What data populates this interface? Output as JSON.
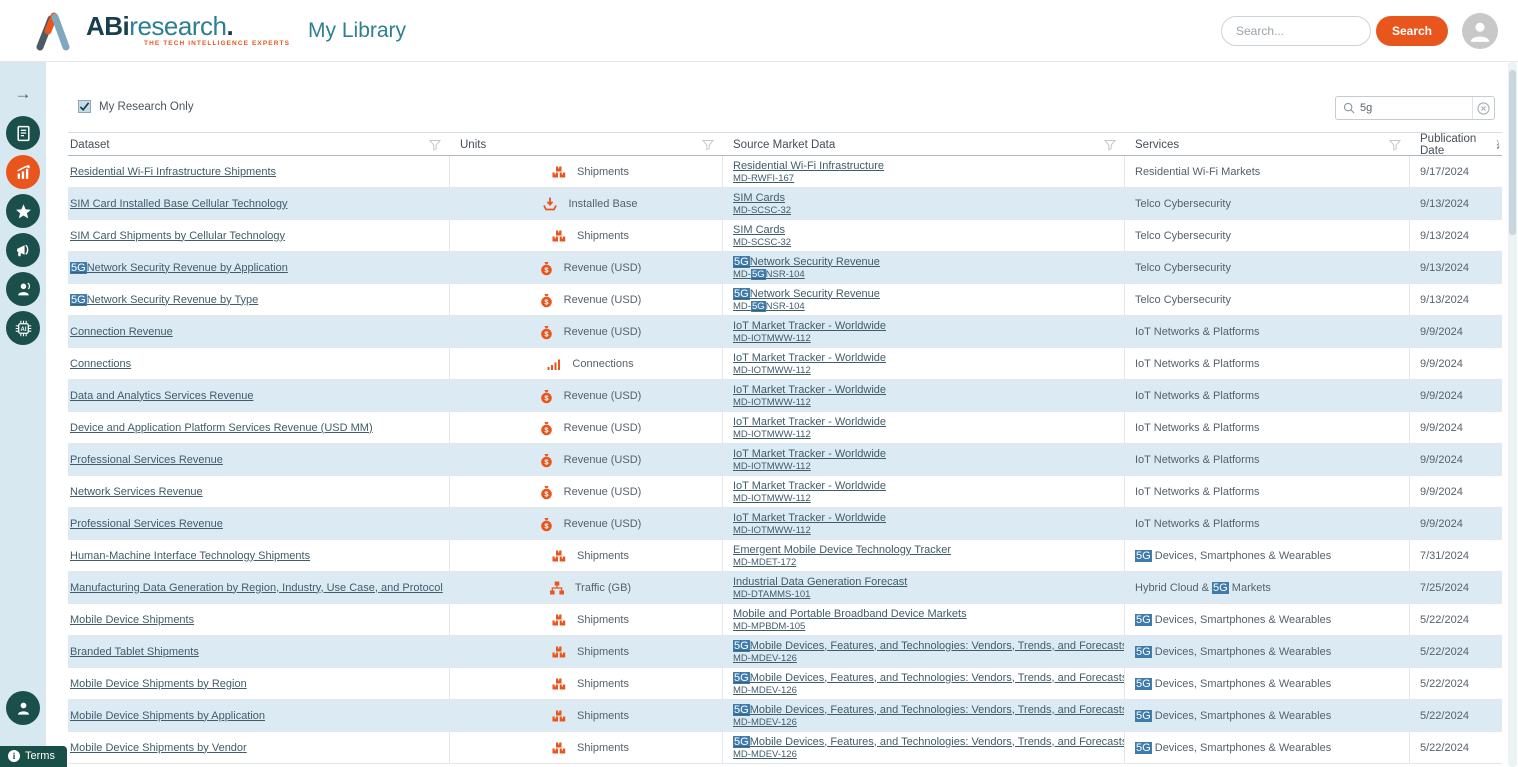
{
  "colors": {
    "accent_orange": "#E8561E",
    "sidebar_circle_teal": "#1A4F4B",
    "teal_text": "#2E7F92",
    "logo_dark": "#173F4E",
    "highlight_blue": "#3F7CAC",
    "row_alt_blue": "#DCEBF3",
    "link_color": "#3F5D6B"
  },
  "header": {
    "logo_abi": "ABi",
    "logo_research": "research",
    "logo_dot": ".",
    "logo_tagline": "THE TECH INTELLIGENCE EXPERTS",
    "page_title": "My Library",
    "search_placeholder": "Search...",
    "search_button_label": "Search",
    "avatar_icon": "user-avatar-icon"
  },
  "sidebar": {
    "collapse_arrow": "→",
    "items": [
      {
        "id": "reports",
        "icon": "report-icon",
        "active": false
      },
      {
        "id": "market-data",
        "icon": "chart-icon",
        "active": true
      },
      {
        "id": "favorites",
        "icon": "star-icon",
        "active": false
      },
      {
        "id": "announcements",
        "icon": "megaphone-icon",
        "active": false
      },
      {
        "id": "analyst-inquiry",
        "icon": "analyst-icon",
        "active": false
      },
      {
        "id": "ai-assistant",
        "icon": "ai-chip-icon",
        "active": false
      }
    ],
    "bottom_item": {
      "id": "account",
      "icon": "account-icon"
    }
  },
  "controls": {
    "my_research_label": "My Research Only",
    "my_research_checked": true,
    "table_search_value": "5g",
    "table_search_icons": [
      "search-icon",
      "clear-icon"
    ]
  },
  "table": {
    "columns": [
      {
        "label": "Dataset",
        "icon": "filter-funnel-icon"
      },
      {
        "label": "Units",
        "icon": "filter-funnel-icon"
      },
      {
        "label": "Source Market Data",
        "icon": "filter-funnel-icon"
      },
      {
        "label": "Services",
        "icon": "filter-funnel-icon"
      },
      {
        "label": "Publication Date",
        "icon": "sort-descending-icon"
      }
    ],
    "rows": [
      {
        "name": "Residential Wi-Fi Infrastructure Shipments",
        "unit_icon": "shipments",
        "unit": "Shipments",
        "source": "Residential Wi-Fi Infrastructure",
        "code": "MD-RWFI-167",
        "services": "Residential Wi-Fi Markets",
        "date": "9/17/2024"
      },
      {
        "name": "SIM Card Installed Base Cellular Technology",
        "unit_icon": "installed-base",
        "unit": "Installed Base",
        "source": "SIM Cards",
        "code": "MD-SCSC-32",
        "services": "Telco Cybersecurity",
        "date": "9/13/2024"
      },
      {
        "name": "SIM Card Shipments by Cellular Technology",
        "unit_icon": "shipments",
        "unit": "Shipments",
        "source": "SIM Cards",
        "code": "MD-SCSC-32",
        "services": "Telco Cybersecurity",
        "date": "9/13/2024"
      },
      {
        "name": "«5G»Network Security Revenue by Application",
        "unit_icon": "revenue",
        "unit": "Revenue (USD)",
        "source": "«5G»Network Security Revenue",
        "code": "MD-«5G»NSR-104",
        "services": "Telco Cybersecurity",
        "date": "9/13/2024"
      },
      {
        "name": "«5G»Network Security Revenue by Type",
        "unit_icon": "revenue",
        "unit": "Revenue (USD)",
        "source": "«5G»Network Security Revenue",
        "code": "MD-«5G»NSR-104",
        "services": "Telco Cybersecurity",
        "date": "9/13/2024"
      },
      {
        "name": "Connection Revenue",
        "unit_icon": "revenue",
        "unit": "Revenue (USD)",
        "source": "IoT Market Tracker - Worldwide",
        "code": "MD-IOTMWW-112",
        "services": "IoT Networks & Platforms",
        "date": "9/9/2024"
      },
      {
        "name": "Connections",
        "unit_icon": "connections",
        "unit": "Connections",
        "source": "IoT Market Tracker - Worldwide",
        "code": "MD-IOTMWW-112",
        "services": "IoT Networks & Platforms",
        "date": "9/9/2024"
      },
      {
        "name": "Data and Analytics Services Revenue",
        "unit_icon": "revenue",
        "unit": "Revenue (USD)",
        "source": "IoT Market Tracker - Worldwide",
        "code": "MD-IOTMWW-112",
        "services": "IoT Networks & Platforms",
        "date": "9/9/2024"
      },
      {
        "name": "Device and Application Platform Services Revenue (USD MM)",
        "unit_icon": "revenue",
        "unit": "Revenue (USD)",
        "source": "IoT Market Tracker - Worldwide",
        "code": "MD-IOTMWW-112",
        "services": "IoT Networks & Platforms",
        "date": "9/9/2024"
      },
      {
        "name": "Professional Services Revenue",
        "unit_icon": "revenue",
        "unit": "Revenue (USD)",
        "source": "IoT Market Tracker - Worldwide",
        "code": "MD-IOTMWW-112",
        "services": "IoT Networks & Platforms",
        "date": "9/9/2024"
      },
      {
        "name": "Network Services Revenue",
        "unit_icon": "revenue",
        "unit": "Revenue (USD)",
        "source": "IoT Market Tracker - Worldwide",
        "code": "MD-IOTMWW-112",
        "services": "IoT Networks & Platforms",
        "date": "9/9/2024"
      },
      {
        "name": "Professional Services Revenue",
        "unit_icon": "revenue",
        "unit": "Revenue (USD)",
        "source": "IoT Market Tracker - Worldwide",
        "code": "MD-IOTMWW-112",
        "services": "IoT Networks & Platforms",
        "date": "9/9/2024"
      },
      {
        "name": "Human-Machine Interface Technology Shipments",
        "unit_icon": "shipments",
        "unit": "Shipments",
        "source": "Emergent Mobile Device Technology Tracker",
        "code": "MD-MDET-172",
        "services": "«5G» Devices, Smartphones & Wearables",
        "date": "7/31/2024"
      },
      {
        "name": "Manufacturing Data Generation by Region, Industry, Use Case, and Protocol",
        "unit_icon": "traffic",
        "unit": "Traffic (GB)",
        "source": "Industrial Data Generation Forecast",
        "code": "MD-DTAMMS-101",
        "services": "Hybrid Cloud & «5G» Markets",
        "date": "7/25/2024"
      },
      {
        "name": "Mobile Device Shipments",
        "unit_icon": "shipments",
        "unit": "Shipments",
        "source": "Mobile and Portable Broadband Device Markets",
        "code": "MD-MPBDM-105",
        "services": "«5G» Devices, Smartphones & Wearables",
        "date": "5/22/2024"
      },
      {
        "name": "Branded Tablet Shipments",
        "unit_icon": "shipments",
        "unit": "Shipments",
        "source": "«5G»Mobile Devices, Features, and Technologies: Vendors, Trends, and Forecasts",
        "code": "MD-MDEV-126",
        "services": "«5G» Devices, Smartphones & Wearables",
        "date": "5/22/2024"
      },
      {
        "name": "Mobile Device Shipments by Region",
        "unit_icon": "shipments",
        "unit": "Shipments",
        "source": "«5G»Mobile Devices, Features, and Technologies: Vendors, Trends, and Forecasts",
        "code": "MD-MDEV-126",
        "services": "«5G» Devices, Smartphones & Wearables",
        "date": "5/22/2024"
      },
      {
        "name": "Mobile Device Shipments by Application",
        "unit_icon": "shipments",
        "unit": "Shipments",
        "source": "«5G»Mobile Devices, Features, and Technologies: Vendors, Trends, and Forecasts",
        "code": "MD-MDEV-126",
        "services": "«5G» Devices, Smartphones & Wearables",
        "date": "5/22/2024"
      },
      {
        "name": "Mobile Device Shipments by Vendor",
        "unit_icon": "shipments",
        "unit": "Shipments",
        "source": "«5G»Mobile Devices, Features, and Technologies: Vendors, Trends, and Forecasts",
        "code": "MD-MDEV-126",
        "services": "«5G» Devices, Smartphones & Wearables",
        "date": "5/22/2024"
      }
    ]
  },
  "footer": {
    "terms_label": "Terms"
  }
}
